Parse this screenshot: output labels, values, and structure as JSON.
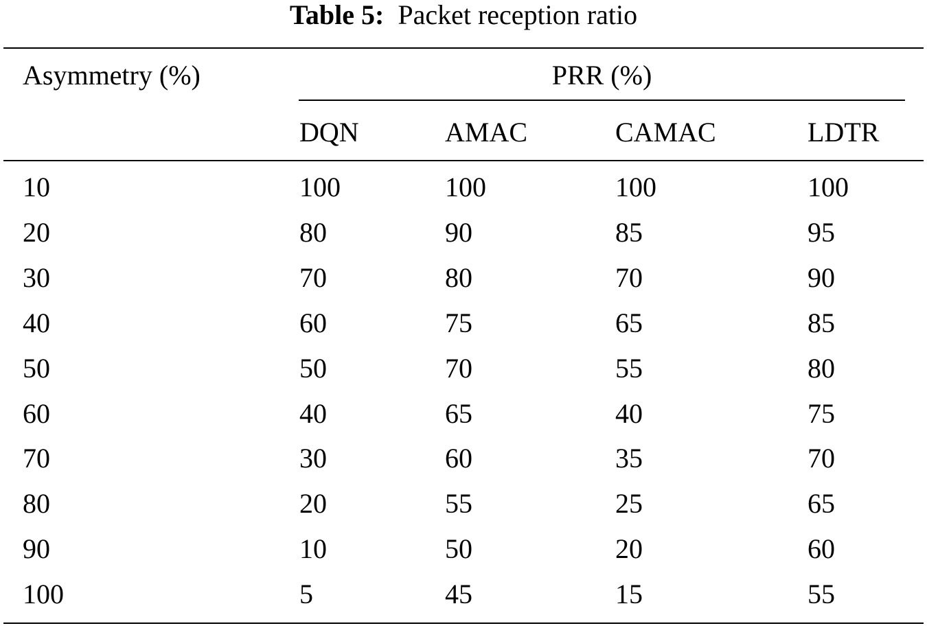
{
  "caption": {
    "label": "Table 5:",
    "text": "Packet reception ratio"
  },
  "table": {
    "row_header": "Asymmetry (%)",
    "group_header": "PRR (%)",
    "columns": [
      "DQN",
      "AMAC",
      "CAMAC",
      "LDTR"
    ],
    "rows": [
      [
        10,
        100,
        100,
        100,
        100
      ],
      [
        20,
        80,
        90,
        85,
        95
      ],
      [
        30,
        70,
        80,
        70,
        90
      ],
      [
        40,
        60,
        75,
        65,
        85
      ],
      [
        50,
        50,
        70,
        55,
        80
      ],
      [
        60,
        40,
        65,
        40,
        75
      ],
      [
        70,
        30,
        60,
        35,
        70
      ],
      [
        80,
        20,
        55,
        25,
        65
      ],
      [
        90,
        10,
        50,
        20,
        60
      ],
      [
        100,
        5,
        45,
        15,
        55
      ]
    ]
  }
}
